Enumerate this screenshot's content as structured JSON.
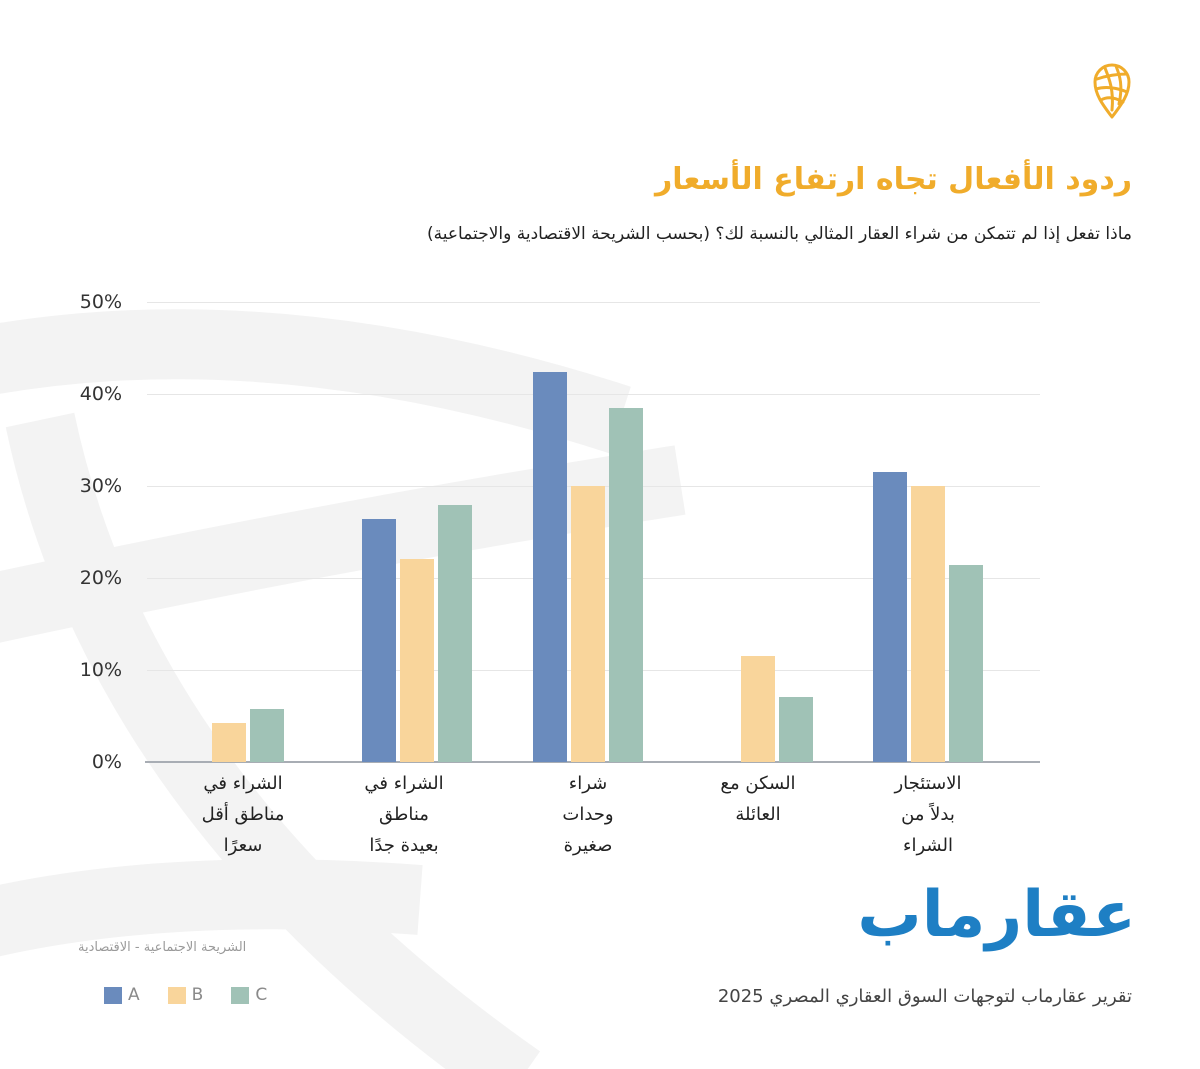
{
  "header": {
    "title": "ردود الأفعال تجاه ارتفاع الأسعار",
    "subtitle": "ماذا تفعل إذا لم تتمكن من شراء العقار المثالي بالنسبة لك؟  (بحسب الشريحة الاقتصادية والاجتماعية)",
    "logo_icon": "map-pin-globe-icon",
    "accent_color": "#F0AC2B"
  },
  "footer": {
    "brand": "عقارماب",
    "brand_color": "#1E7FC4",
    "report_title": "تقرير عقارماب لتوجهات السوق العقاري المصري 2025"
  },
  "legend": {
    "title": "الشريحة الاجتماعية - الاقتصادية",
    "items": [
      {
        "label": "A",
        "color": "#6A8BBD"
      },
      {
        "label": "B",
        "color": "#F9D59B"
      },
      {
        "label": "C",
        "color": "#A0C2B6"
      }
    ]
  },
  "chart_data": {
    "type": "bar",
    "title": "ردود الأفعال تجاه ارتفاع الأسعار",
    "subtitle": "ماذا تفعل إذا لم تتمكن من شراء العقار المثالي بالنسبة لك؟ (بحسب الشريحة الاقتصادية والاجتماعية)",
    "xlabel": "",
    "ylabel": "",
    "ylim": [
      0,
      50
    ],
    "yticks": [
      "0%",
      "10%",
      "20%",
      "30%",
      "40%",
      "50%"
    ],
    "grid": true,
    "legend_position": "bottom-left",
    "legend_title": "الشريحة الاجتماعية - الاقتصادية",
    "categories": [
      "الشراء في مناطق أقل سعرًا",
      "الشراء في مناطق بعيدة جدًا",
      "شراء وحدات صغيرة",
      "السكن مع العائلة",
      "الاستئجار بدلاً من الشراء"
    ],
    "category_lines": [
      "الشراء في\nمناطق أقل\nسعرًا",
      "الشراء في\nمناطق\nبعيدة جدًا",
      "شراء\nوحدات\nصغيرة",
      "السكن مع\nالعائلة",
      "الاستئجار\nبدلاً من\nالشراء"
    ],
    "series": [
      {
        "name": "A",
        "color": "#6A8BBD",
        "values": [
          0,
          26.4,
          42.4,
          0,
          31.5
        ]
      },
      {
        "name": "B",
        "color": "#F9D59B",
        "values": [
          4.2,
          22.1,
          30.0,
          11.5,
          30.0
        ]
      },
      {
        "name": "C",
        "color": "#A0C2B6",
        "values": [
          5.8,
          27.9,
          38.5,
          7.1,
          21.4
        ]
      }
    ]
  }
}
